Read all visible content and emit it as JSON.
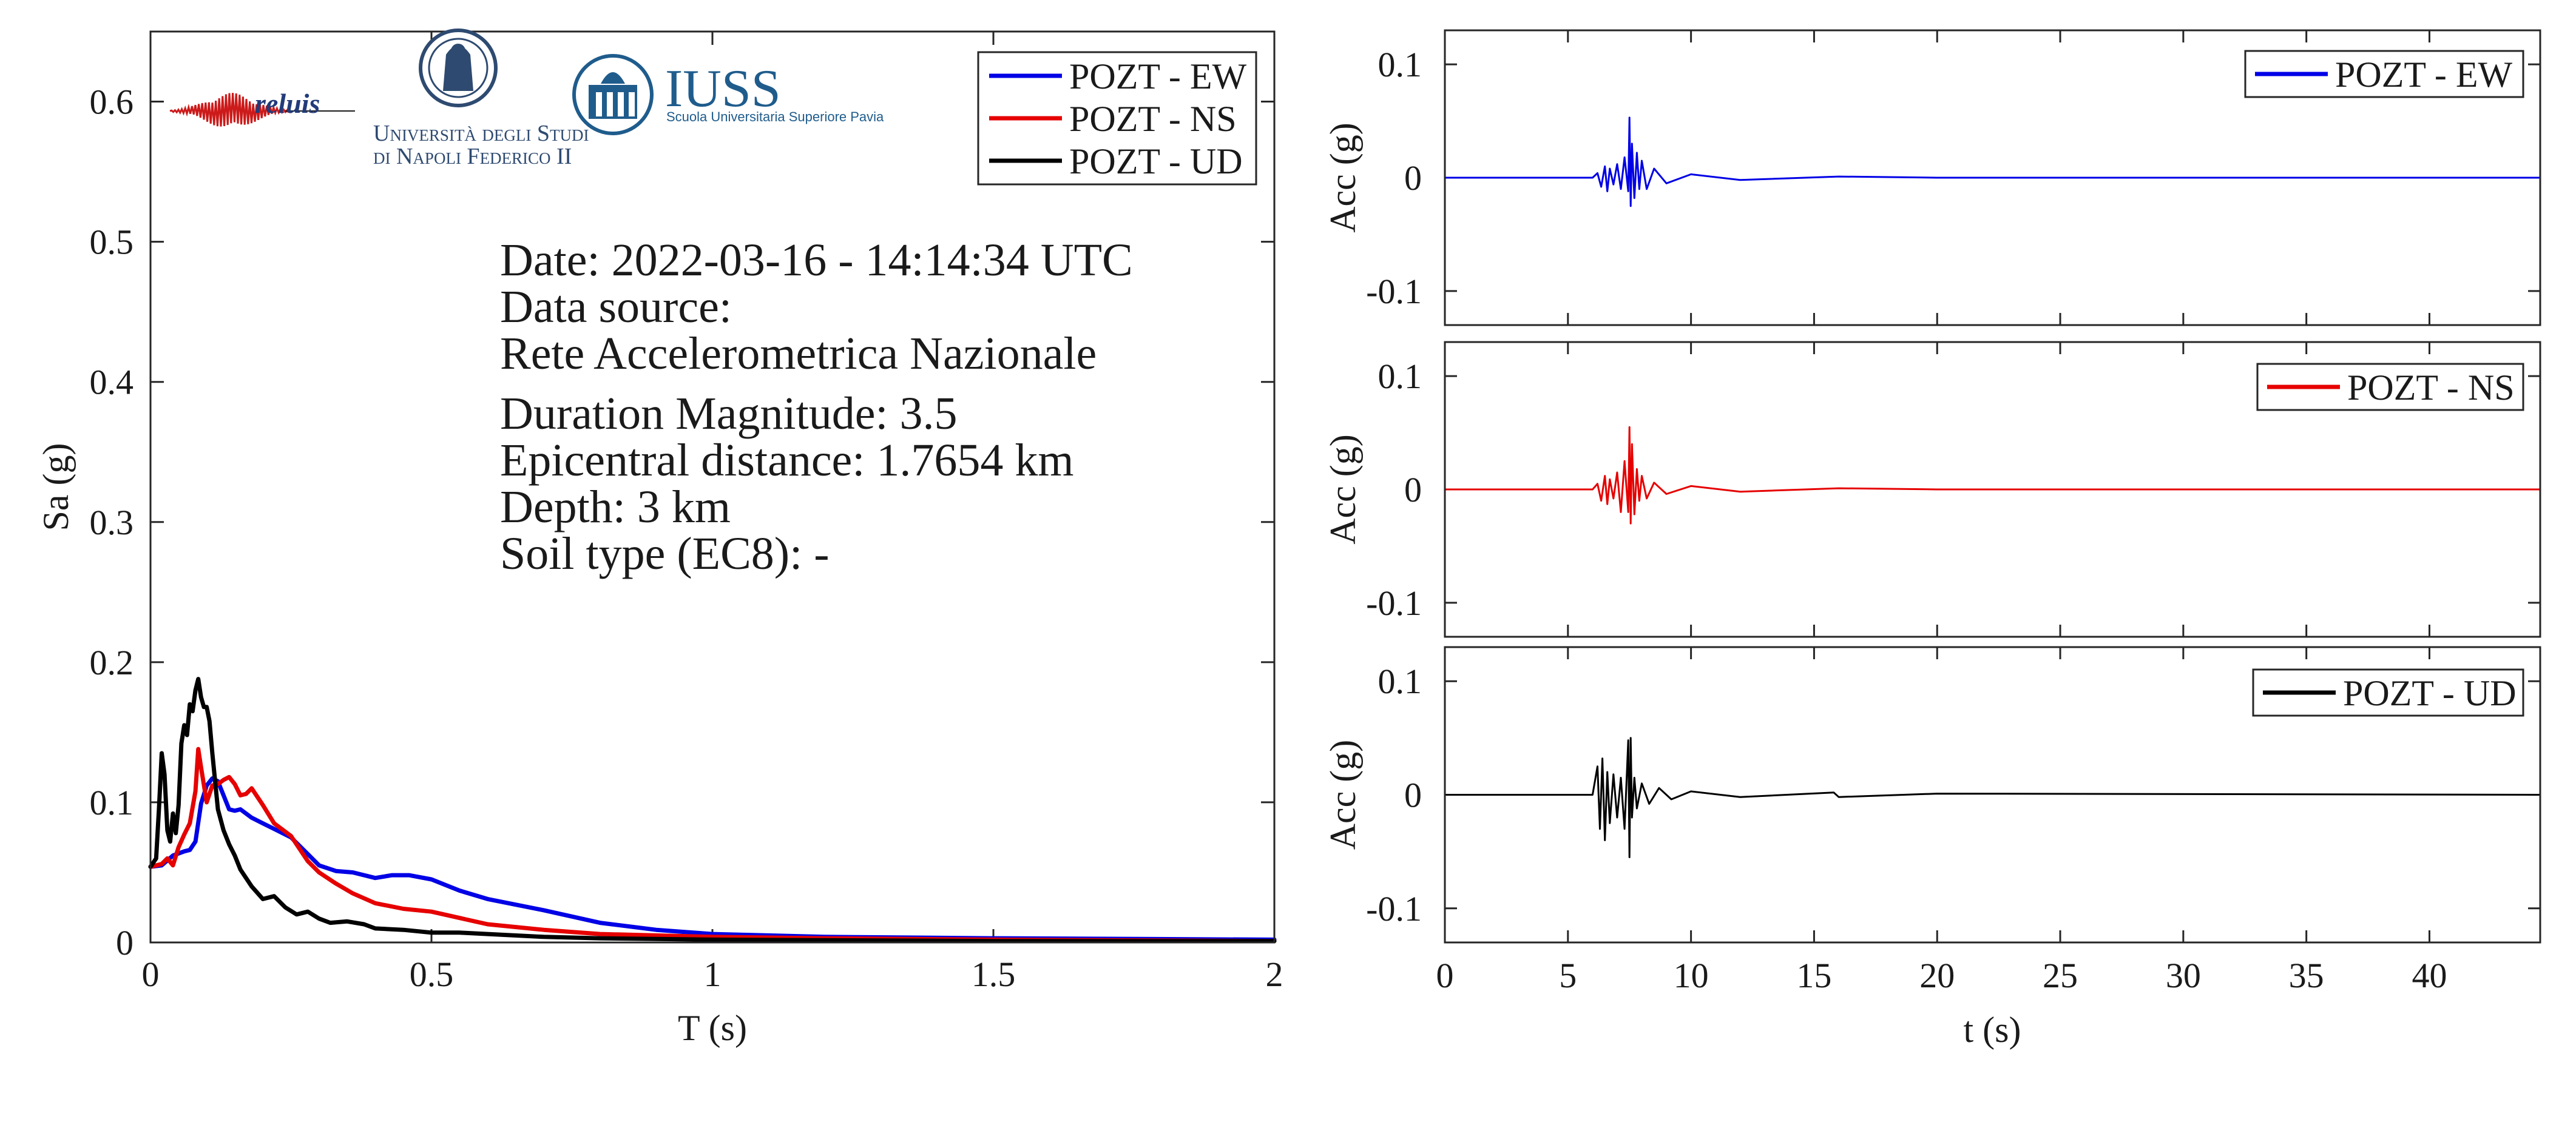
{
  "colors": {
    "ew": "#0000e6",
    "ns": "#e60000",
    "ud": "#000000",
    "iuss": "#1f5c8c",
    "unina": "#2e4a70"
  },
  "logos": {
    "reluis": "reluis",
    "unina_line1": "Università degli Studi",
    "unina_line2": "di Napoli Federico II",
    "iuss_title": "IUSS",
    "iuss_subtitle": "Scuola Universitaria Superiore Pavia"
  },
  "info": {
    "date": "Date: 2022-03-16 - 14:14:34 UTC",
    "source_label": "Data source:",
    "source_name": "Rete Accelerometrica Nazionale",
    "magnitude": "Duration Magnitude: 3.5",
    "distance": "Epicentral distance: 1.7654 km",
    "depth": "Depth: 3 km",
    "soil": "Soil type (EC8): -"
  },
  "chart_data": [
    {
      "type": "line",
      "title": "",
      "xlabel": "T (s)",
      "ylabel": "Sa (g)",
      "xlim": [
        0,
        2
      ],
      "ylim": [
        0,
        0.65
      ],
      "xticks": [
        0,
        0.5,
        1,
        1.5,
        2
      ],
      "xtick_labels": [
        "0",
        "0.5",
        "1",
        "1.5",
        "2"
      ],
      "yticks": [
        0,
        0.1,
        0.2,
        0.3,
        0.4,
        0.5,
        0.6
      ],
      "ytick_labels": [
        "0",
        "0.1",
        "0.2",
        "0.3",
        "0.4",
        "0.5",
        "0.6"
      ],
      "legend_position": "top-right",
      "series": [
        {
          "name": "POZT - EW",
          "color": "#0000e6",
          "x": [
            0,
            0.02,
            0.04,
            0.06,
            0.07,
            0.08,
            0.09,
            0.1,
            0.11,
            0.12,
            0.13,
            0.14,
            0.15,
            0.16,
            0.18,
            0.2,
            0.22,
            0.25,
            0.28,
            0.3,
            0.33,
            0.36,
            0.4,
            0.43,
            0.46,
            0.5,
            0.55,
            0.6,
            0.7,
            0.8,
            0.9,
            1.0,
            1.2,
            1.5,
            2.0
          ],
          "y": [
            0.054,
            0.055,
            0.062,
            0.065,
            0.066,
            0.072,
            0.099,
            0.112,
            0.117,
            0.115,
            0.105,
            0.095,
            0.094,
            0.095,
            0.089,
            0.085,
            0.081,
            0.075,
            0.063,
            0.055,
            0.051,
            0.05,
            0.046,
            0.048,
            0.048,
            0.045,
            0.037,
            0.031,
            0.023,
            0.014,
            0.009,
            0.006,
            0.004,
            0.003,
            0.002
          ]
        },
        {
          "name": "POZT - NS",
          "color": "#e60000",
          "x": [
            0,
            0.02,
            0.03,
            0.04,
            0.05,
            0.06,
            0.07,
            0.08,
            0.085,
            0.09,
            0.1,
            0.11,
            0.12,
            0.13,
            0.14,
            0.15,
            0.16,
            0.17,
            0.18,
            0.2,
            0.22,
            0.25,
            0.28,
            0.3,
            0.33,
            0.36,
            0.4,
            0.45,
            0.5,
            0.6,
            0.7,
            0.8,
            1.0,
            1.2,
            1.5,
            2.0
          ],
          "y": [
            0.054,
            0.056,
            0.06,
            0.055,
            0.068,
            0.077,
            0.085,
            0.108,
            0.138,
            0.125,
            0.1,
            0.112,
            0.113,
            0.116,
            0.118,
            0.113,
            0.105,
            0.106,
            0.11,
            0.098,
            0.085,
            0.076,
            0.058,
            0.05,
            0.042,
            0.035,
            0.028,
            0.024,
            0.022,
            0.013,
            0.009,
            0.006,
            0.004,
            0.003,
            0.002,
            0.001
          ]
        },
        {
          "name": "POZT - UD",
          "color": "#000000",
          "x": [
            0,
            0.01,
            0.015,
            0.02,
            0.025,
            0.03,
            0.035,
            0.04,
            0.045,
            0.05,
            0.055,
            0.06,
            0.065,
            0.07,
            0.075,
            0.08,
            0.085,
            0.09,
            0.095,
            0.1,
            0.105,
            0.11,
            0.12,
            0.13,
            0.14,
            0.15,
            0.16,
            0.18,
            0.2,
            0.22,
            0.24,
            0.26,
            0.28,
            0.3,
            0.32,
            0.35,
            0.38,
            0.4,
            0.45,
            0.5,
            0.55,
            0.6,
            0.7,
            0.8,
            1.0,
            1.5,
            2.0
          ],
          "y": [
            0.054,
            0.06,
            0.095,
            0.135,
            0.12,
            0.08,
            0.072,
            0.092,
            0.078,
            0.098,
            0.142,
            0.155,
            0.148,
            0.17,
            0.165,
            0.18,
            0.188,
            0.175,
            0.168,
            0.168,
            0.158,
            0.135,
            0.095,
            0.08,
            0.07,
            0.062,
            0.052,
            0.04,
            0.031,
            0.033,
            0.025,
            0.02,
            0.022,
            0.017,
            0.014,
            0.015,
            0.013,
            0.01,
            0.009,
            0.007,
            0.007,
            0.006,
            0.004,
            0.003,
            0.002,
            0.001,
            0.001
          ]
        }
      ]
    },
    {
      "type": "line",
      "title": "",
      "xlabel": "",
      "ylabel": "Acc (g)",
      "xlim": [
        0,
        44.5
      ],
      "ylim": [
        -0.13,
        0.13
      ],
      "yticks": [
        -0.1,
        0,
        0.1
      ],
      "ytick_labels": [
        "-0.1",
        "0",
        "0.1"
      ],
      "legend_position": "top-right",
      "series": [
        {
          "name": "POZT - EW",
          "color": "#0000e6",
          "t": [
            0,
            6.0,
            6.2,
            6.35,
            6.5,
            6.6,
            6.7,
            6.85,
            7.0,
            7.15,
            7.3,
            7.45,
            7.5,
            7.55,
            7.6,
            7.7,
            7.8,
            7.9,
            8.0,
            8.2,
            8.5,
            9.0,
            10.0,
            12.0,
            16.0,
            20.0,
            44.5
          ],
          "acc": [
            0,
            0,
            0.004,
            -0.008,
            0.01,
            -0.012,
            0.008,
            -0.006,
            0.012,
            -0.01,
            0.018,
            -0.012,
            0.053,
            -0.025,
            0.03,
            -0.018,
            0.022,
            -0.01,
            0.015,
            -0.01,
            0.008,
            -0.005,
            0.003,
            -0.002,
            0.001,
            0,
            0
          ]
        },
        {
          "name": "POZT - NS",
          "color": "#e60000",
          "t": [
            0,
            6.0,
            6.2,
            6.35,
            6.5,
            6.6,
            6.7,
            6.85,
            7.0,
            7.15,
            7.3,
            7.45,
            7.5,
            7.55,
            7.6,
            7.7,
            7.8,
            7.9,
            8.0,
            8.2,
            8.5,
            9.0,
            10.0,
            12.0,
            16.0,
            20.0,
            44.5
          ],
          "acc": [
            0,
            0,
            0.005,
            -0.01,
            0.012,
            -0.013,
            0.009,
            -0.008,
            0.015,
            -0.02,
            0.025,
            -0.02,
            0.055,
            -0.03,
            0.04,
            -0.022,
            0.018,
            -0.01,
            0.012,
            -0.008,
            0.006,
            -0.004,
            0.003,
            -0.002,
            0.001,
            0,
            0
          ]
        },
        {
          "name": "POZT - UD",
          "color": "#000000",
          "t": [
            0,
            6.0,
            6.2,
            6.3,
            6.4,
            6.5,
            6.6,
            6.7,
            6.85,
            7.0,
            7.15,
            7.3,
            7.45,
            7.5,
            7.55,
            7.6,
            7.7,
            7.8,
            8.0,
            8.3,
            8.7,
            9.2,
            10.0,
            12.0,
            15.8,
            16.0,
            20.0,
            44.5
          ],
          "acc": [
            0,
            0,
            0.025,
            -0.03,
            0.032,
            -0.04,
            0.02,
            -0.025,
            0.018,
            -0.02,
            0.015,
            -0.03,
            0.048,
            -0.055,
            0.05,
            -0.02,
            0.015,
            -0.012,
            0.01,
            -0.008,
            0.006,
            -0.004,
            0.003,
            -0.002,
            0.002,
            -0.002,
            0.001,
            0
          ]
        }
      ],
      "xtick_labels_bottom": [
        "0",
        "5",
        "10",
        "15",
        "20",
        "25",
        "30",
        "35",
        "40"
      ],
      "xticks": [
        0,
        5,
        10,
        15,
        20,
        25,
        30,
        35,
        40
      ],
      "xlabel_bottom": "t (s)"
    }
  ]
}
